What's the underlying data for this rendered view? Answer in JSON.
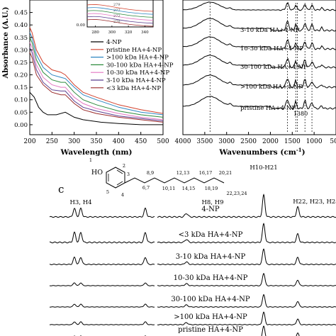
{
  "chart_data": [
    {
      "panel": "a",
      "type": "line",
      "xlabel": "Wavelength (nm)",
      "ylabel": "Absorbance (A.U.)",
      "xlim": [
        200,
        500
      ],
      "ylim": [
        -0.04,
        0.5
      ],
      "x_ticks": [
        "200",
        "250",
        "300",
        "350",
        "400",
        "450",
        "500"
      ],
      "y_ticks": [
        "0.00",
        "0.05",
        "0.10",
        "0.15",
        "0.20",
        "0.25",
        "0.30",
        "0.35",
        "0.40",
        "0.45"
      ],
      "legend_position": "right",
      "series": [
        {
          "name": "4-NP",
          "color": "#000000",
          "x": [
            200,
            210,
            220,
            230,
            240,
            260,
            280,
            300,
            320,
            340,
            360,
            400,
            450,
            500
          ],
          "y": [
            0.13,
            0.11,
            0.07,
            0.05,
            0.04,
            0.04,
            0.05,
            0.03,
            0.02,
            0.015,
            0.01,
            0.005,
            0.0,
            0.0
          ]
        },
        {
          "name": "pristine HA+4-NP",
          "color": "#d2412c",
          "x": [
            200,
            205,
            215,
            230,
            250,
            270,
            280,
            300,
            320,
            350,
            400,
            450,
            500
          ],
          "y": [
            0.39,
            0.37,
            0.3,
            0.25,
            0.22,
            0.21,
            0.2,
            0.16,
            0.13,
            0.11,
            0.08,
            0.06,
            0.045
          ]
        },
        {
          "name": ">100 kDa HA+4-NP",
          "color": "#2e86c1",
          "x": [
            200,
            205,
            215,
            230,
            250,
            270,
            280,
            300,
            320,
            350,
            400,
            450,
            500
          ],
          "y": [
            0.37,
            0.35,
            0.28,
            0.23,
            0.2,
            0.19,
            0.185,
            0.15,
            0.12,
            0.1,
            0.07,
            0.05,
            0.04
          ]
        },
        {
          "name": "30-100 kDa HA+4-NP",
          "color": "#2c8a3c",
          "x": [
            200,
            205,
            215,
            230,
            250,
            270,
            280,
            300,
            320,
            350,
            400,
            450,
            500
          ],
          "y": [
            0.35,
            0.33,
            0.26,
            0.21,
            0.18,
            0.17,
            0.17,
            0.13,
            0.1,
            0.08,
            0.055,
            0.04,
            0.03
          ]
        },
        {
          "name": "10-30 kDa HA+4-NP",
          "color": "#e377c2",
          "x": [
            200,
            205,
            215,
            230,
            250,
            270,
            280,
            300,
            320,
            350,
            400,
            450,
            500
          ],
          "y": [
            0.33,
            0.31,
            0.24,
            0.19,
            0.16,
            0.15,
            0.15,
            0.11,
            0.085,
            0.065,
            0.045,
            0.03,
            0.02
          ]
        },
        {
          "name": "3-10 kDa HA+4-NP",
          "color": "#5b3f8f",
          "x": [
            200,
            205,
            215,
            230,
            250,
            270,
            280,
            300,
            320,
            350,
            400,
            450,
            500
          ],
          "y": [
            0.31,
            0.29,
            0.22,
            0.17,
            0.14,
            0.135,
            0.135,
            0.095,
            0.07,
            0.055,
            0.035,
            0.025,
            0.015
          ]
        },
        {
          "name": "<3 kDa HA+4-NP",
          "color": "#9a2a2a",
          "x": [
            200,
            205,
            215,
            230,
            250,
            270,
            280,
            300,
            320,
            350,
            400,
            450,
            500
          ],
          "y": [
            0.29,
            0.27,
            0.2,
            0.16,
            0.13,
            0.12,
            0.12,
            0.085,
            0.06,
            0.045,
            0.03,
            0.02,
            0.01
          ]
        }
      ],
      "inset": {
        "x_ticks": [
          "280",
          "300",
          "320",
          "340"
        ],
        "y_ticks": [
          "0.00"
        ],
        "labels": [
          "279",
          "277",
          "272",
          "270"
        ]
      }
    },
    {
      "panel": "b",
      "type": "line",
      "xlabel": "Wavenumbers (cm",
      "xlabel_sup": "-1",
      "xlabel_end": ")",
      "xlim": [
        4000,
        500
      ],
      "x_ticks": [
        "4000",
        "3500",
        "3000",
        "2500",
        "2000",
        "1500",
        "1000",
        "500"
      ],
      "dashed_positions": [
        3380,
        1610,
        1420,
        1380,
        1210,
        1050
      ],
      "annotation": "1380",
      "series": [
        {
          "name": "3-10 kDa HA+4-NP"
        },
        {
          "name": "10-30 kDa HA+4-NP"
        },
        {
          "name": "30-100 kDa HA+4-NP"
        },
        {
          "name": ">100 kDa HA+4-NP"
        },
        {
          "name": "pristine HA+4-NP"
        }
      ]
    },
    {
      "panel": "c",
      "type": "line",
      "panel_label": "c",
      "structure_numbers": [
        "1",
        "2",
        "3",
        "4",
        "5",
        "6,7",
        "8,9",
        "10,11",
        "12,13",
        "14,15",
        "16,17",
        "18,19",
        "20,21",
        "22,23,24"
      ],
      "peak_labels": [
        "H3, H4",
        "H8, H9",
        "H10-H21",
        "H22, H23, H24"
      ],
      "structure_group": "HO",
      "series": [
        {
          "name": "4-NP"
        },
        {
          "name": "<3 kDa HA+4-NP"
        },
        {
          "name": "3-10 kDa HA+4-NP"
        },
        {
          "name": "10-30 kDa HA+4-NP"
        },
        {
          "name": "30-100 kDa HA+4-NP"
        },
        {
          "name": ">100 kDa HA+4-NP"
        },
        {
          "name": "pristine HA+4-NP"
        }
      ]
    }
  ]
}
